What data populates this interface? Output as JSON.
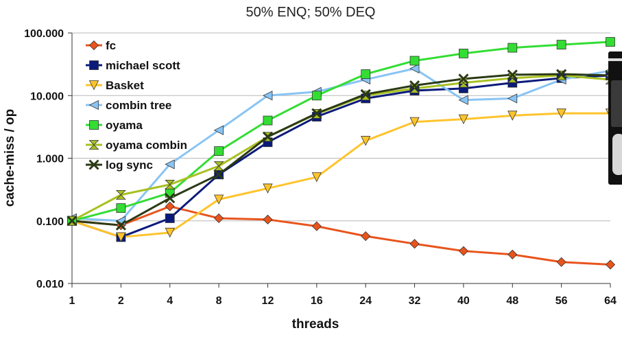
{
  "chart_data": {
    "type": "line",
    "title": "50% ENQ; 50% DEQ",
    "xlabel": "threads",
    "ylabel": "cache-miss  / op",
    "yscale": "log",
    "ylim": [
      0.01,
      100
    ],
    "yticks": [
      "100.000",
      "10.000",
      "1.000",
      "0.100",
      "0.010"
    ],
    "ytick_values": [
      100,
      10,
      1,
      0.1,
      0.01
    ],
    "categories": [
      "1",
      "2",
      "4",
      "8",
      "12",
      "16",
      "24",
      "32",
      "40",
      "48",
      "56",
      "64"
    ],
    "grid": true,
    "legend_position": "top-left",
    "series": [
      {
        "name": "fc",
        "color": "#e8541c",
        "marker": "diamond",
        "values": [
          0.1,
          0.085,
          0.17,
          0.11,
          0.105,
          0.082,
          0.057,
          0.043,
          0.033,
          0.029,
          0.022,
          0.02
        ]
      },
      {
        "name": "michael scott",
        "color": "#0a1a7a",
        "marker": "square",
        "values": [
          0.1,
          0.055,
          0.11,
          0.55,
          1.8,
          4.6,
          9,
          12,
          13,
          16,
          19,
          21
        ]
      },
      {
        "name": "Basket",
        "color": "#ffc42c",
        "marker": "triangle-down",
        "values": [
          0.1,
          0.055,
          0.065,
          0.22,
          0.33,
          0.5,
          1.9,
          3.8,
          4.2,
          4.8,
          5.2,
          5.2
        ]
      },
      {
        "name": "combin tree",
        "color": "#88c4f4",
        "marker": "triangle-left",
        "values": [
          0.11,
          0.1,
          0.8,
          2.8,
          10,
          11.5,
          18,
          27,
          8.5,
          9,
          18,
          25
        ]
      },
      {
        "name": "oyama",
        "color": "#33dd33",
        "marker": "square",
        "values": [
          0.1,
          0.16,
          0.28,
          1.3,
          4,
          10,
          22,
          36,
          47,
          58,
          65,
          72
        ]
      },
      {
        "name": "oyama combin",
        "color": "#a8c020",
        "marker": "hourglass",
        "values": [
          0.1,
          0.26,
          0.38,
          0.75,
          2.2,
          5.1,
          10,
          13,
          16,
          19,
          21,
          18
        ]
      },
      {
        "name": "log sync",
        "color": "#2b3a14",
        "marker": "x",
        "values": [
          0.1,
          0.085,
          0.23,
          0.55,
          2.2,
          5.2,
          10.5,
          14.5,
          18.5,
          21.5,
          22,
          21
        ]
      }
    ]
  }
}
